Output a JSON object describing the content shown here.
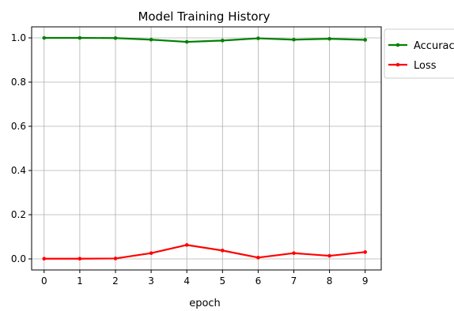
{
  "chart_data": {
    "type": "line",
    "title": "Model Training History",
    "xlabel": "epoch",
    "ylabel": "",
    "x": [
      0,
      1,
      2,
      3,
      4,
      5,
      6,
      7,
      8,
      9
    ],
    "xlim": [
      -0.35,
      9.45
    ],
    "ylim": [
      -0.05,
      1.05
    ],
    "xticks": [
      "0",
      "1",
      "2",
      "3",
      "4",
      "5",
      "6",
      "7",
      "8",
      "9"
    ],
    "yticks": [
      "0.0",
      "0.2",
      "0.4",
      "0.6",
      "0.8",
      "1.0"
    ],
    "grid": true,
    "legend_position": "outside-top-right",
    "series": [
      {
        "name": "Accuracy",
        "color": "#008000",
        "marker": "point",
        "values": [
          1.0,
          1.0,
          0.999,
          0.992,
          0.982,
          0.988,
          0.998,
          0.992,
          0.996,
          0.991
        ]
      },
      {
        "name": "Loss",
        "color": "#ff0000",
        "marker": "point",
        "values": [
          0.001,
          0.001,
          0.002,
          0.026,
          0.063,
          0.038,
          0.006,
          0.026,
          0.014,
          0.031
        ]
      }
    ]
  }
}
